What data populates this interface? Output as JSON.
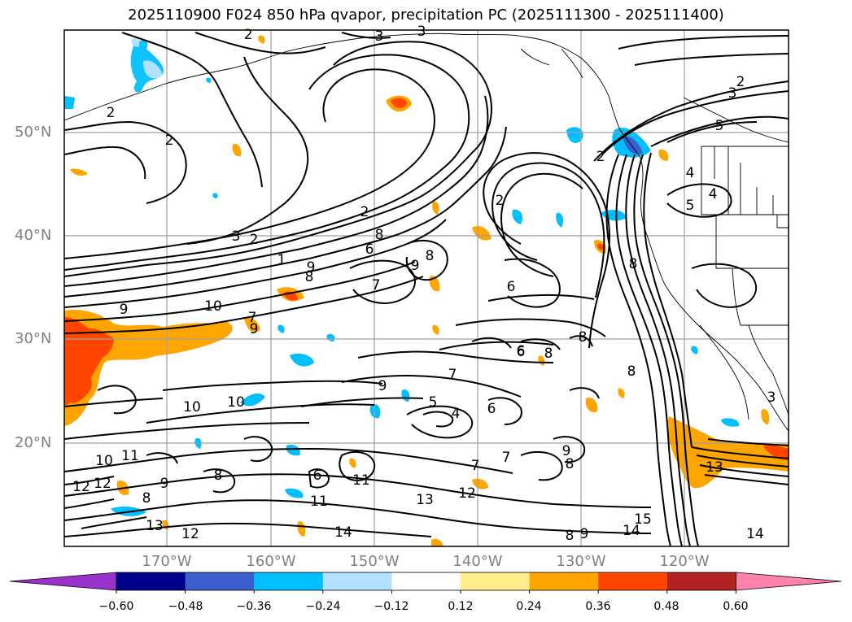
{
  "title": "2025110900 F024 850 hPa qvapor, precipitation PC (2025111300 - 2025111400)",
  "lat_labels": [
    "50°N",
    "40°N",
    "30°N",
    "20°N"
  ],
  "lon_labels": [
    "170°W",
    "160°W",
    "150°W",
    "140°W",
    "130°W",
    "120°W"
  ],
  "colorbar": {
    "ticks": [
      "−0.60",
      "−0.48",
      "−0.36",
      "−0.24",
      "−0.12",
      "0.12",
      "0.24",
      "0.36",
      "0.48",
      "0.60"
    ],
    "colors": [
      "#9932cc",
      "#00008b",
      "#3a5fcd",
      "#00bfff",
      "#b0e2ff",
      "#ffffff",
      "#ffec8b",
      "#ffa500",
      "#ff4500",
      "#b22222",
      "#ff82ab"
    ]
  },
  "contour_labels": [
    "2",
    "3",
    "3",
    "2",
    "2",
    "2",
    "3",
    "2",
    "2",
    "5",
    "4",
    "4",
    "5",
    "3",
    "2",
    "4",
    "7",
    "8",
    "9",
    "2",
    "6",
    "8",
    "9",
    "8",
    "1",
    "6",
    "8",
    "8",
    "9",
    "10",
    "7",
    "9",
    "6",
    "8",
    "7",
    "6",
    "8",
    "9",
    "5",
    "4",
    "6",
    "10",
    "10",
    "10",
    "11",
    "12",
    "12",
    "8",
    "9",
    "8",
    "6",
    "9",
    "8",
    "7",
    "7",
    "13",
    "12",
    "13",
    "15",
    "14",
    "13",
    "12",
    "14",
    "14",
    "8",
    "9",
    "11",
    "11",
    "3"
  ]
}
